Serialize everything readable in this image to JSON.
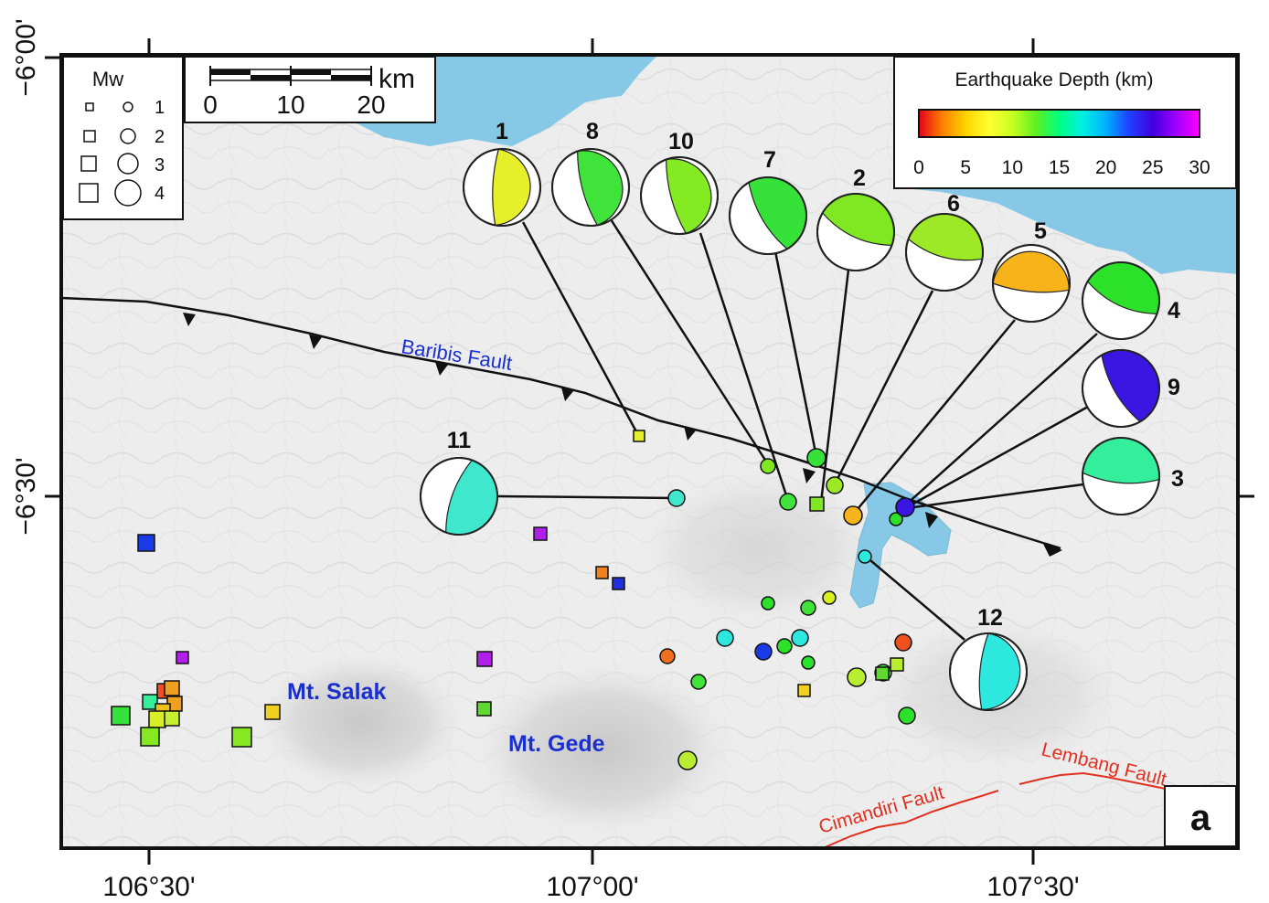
{
  "axes": {
    "x_ticks": [
      "106°30'",
      "107°00'",
      "107°30'"
    ],
    "y_ticks": [
      "−6°00'",
      "−6°30'"
    ]
  },
  "faults": {
    "baribis": "Baribis Fault",
    "cimandiri": "Cimandiri Fault",
    "lembang": "Lembang Fault"
  },
  "volcanoes": {
    "salak": "Mt. Salak",
    "gede": "Mt. Gede"
  },
  "panel_label": "a",
  "mw_legend": {
    "title": "Mw",
    "values": [
      "1",
      "2",
      "3",
      "4"
    ]
  },
  "scalebar": {
    "unit": "km",
    "labels": [
      "0",
      "10",
      "20"
    ]
  },
  "depth_legend": {
    "title": "Earthquake Depth (km)",
    "ticks": [
      "0",
      "5",
      "10",
      "15",
      "20",
      "25",
      "30"
    ],
    "colors": [
      "#e3001b",
      "#ff7f00",
      "#ffd400",
      "#ffff30",
      "#c8ff20",
      "#60f020",
      "#00ff80",
      "#00f0e0",
      "#00b0ff",
      "#2040ff",
      "#4000e0",
      "#a000ff",
      "#ff00ff"
    ]
  },
  "colors": {
    "sea": "#86c8e6",
    "land": "#ececec",
    "frame": "#111111",
    "fault_thrust": "#111111",
    "fault_red": "#e03020",
    "label_blue": "#1a2fd0",
    "fault_label_red": "#e03020"
  },
  "focal_mechanisms": [
    {
      "id": "1",
      "color": "#e6ef2a"
    },
    {
      "id": "8",
      "color": "#3fe33a"
    },
    {
      "id": "10",
      "color": "#84ea21"
    },
    {
      "id": "7",
      "color": "#36e23a"
    },
    {
      "id": "2",
      "color": "#7fe823"
    },
    {
      "id": "6",
      "color": "#9ee926"
    },
    {
      "id": "5",
      "color": "#f7b41a"
    },
    {
      "id": "4",
      "color": "#2be12a"
    },
    {
      "id": "9",
      "color": "#3b16e2"
    },
    {
      "id": "3",
      "color": "#33ef9c"
    },
    {
      "id": "11",
      "color": "#3fe8cc"
    },
    {
      "id": "12",
      "color": "#2de8df"
    }
  ]
}
